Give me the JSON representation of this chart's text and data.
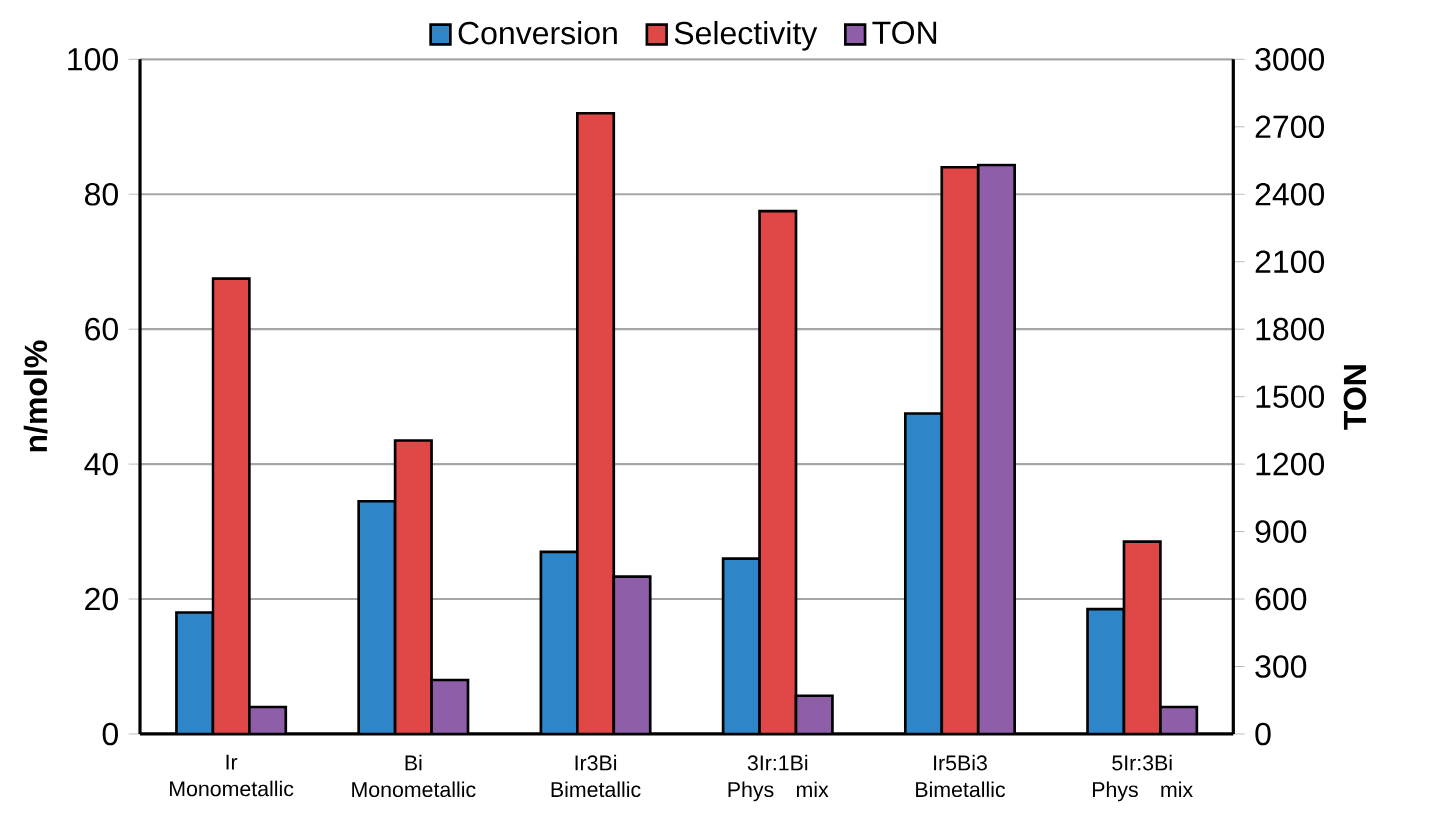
{
  "chart_data": {
    "type": "bar",
    "categories": [
      "Ir Monometallic",
      "Bi Monometallic",
      "Ir3Bi Bimetallic",
      "3Ir:1Bi Phys mix",
      "Ir5Bi3 Bimetallic",
      "5Ir:3Bi Phys mix"
    ],
    "ylabel": "n/mol%",
    "y2label": "TON",
    "ylim": [
      0,
      100
    ],
    "yticks": [
      0,
      20,
      40,
      60,
      80,
      100
    ],
    "y2lim": [
      0,
      3000
    ],
    "y2ticks": [
      0,
      300,
      600,
      900,
      1200,
      1500,
      1800,
      2100,
      2400,
      2700,
      3000
    ],
    "grid": "y",
    "legend": "top",
    "series": [
      {
        "name": "Conversion",
        "color": "#2e86c8",
        "values": [
          18,
          34.5,
          27,
          26,
          47.5,
          18.5
        ]
      },
      {
        "name": "Selectivity",
        "color": "#e04848",
        "values": [
          67.5,
          43.5,
          92,
          77.5,
          84,
          28.5
        ]
      },
      {
        "name": "TON",
        "color": "#8e5ea8",
        "axis": "y2",
        "values": [
          120,
          240,
          700,
          170,
          2530,
          120
        ]
      }
    ]
  }
}
